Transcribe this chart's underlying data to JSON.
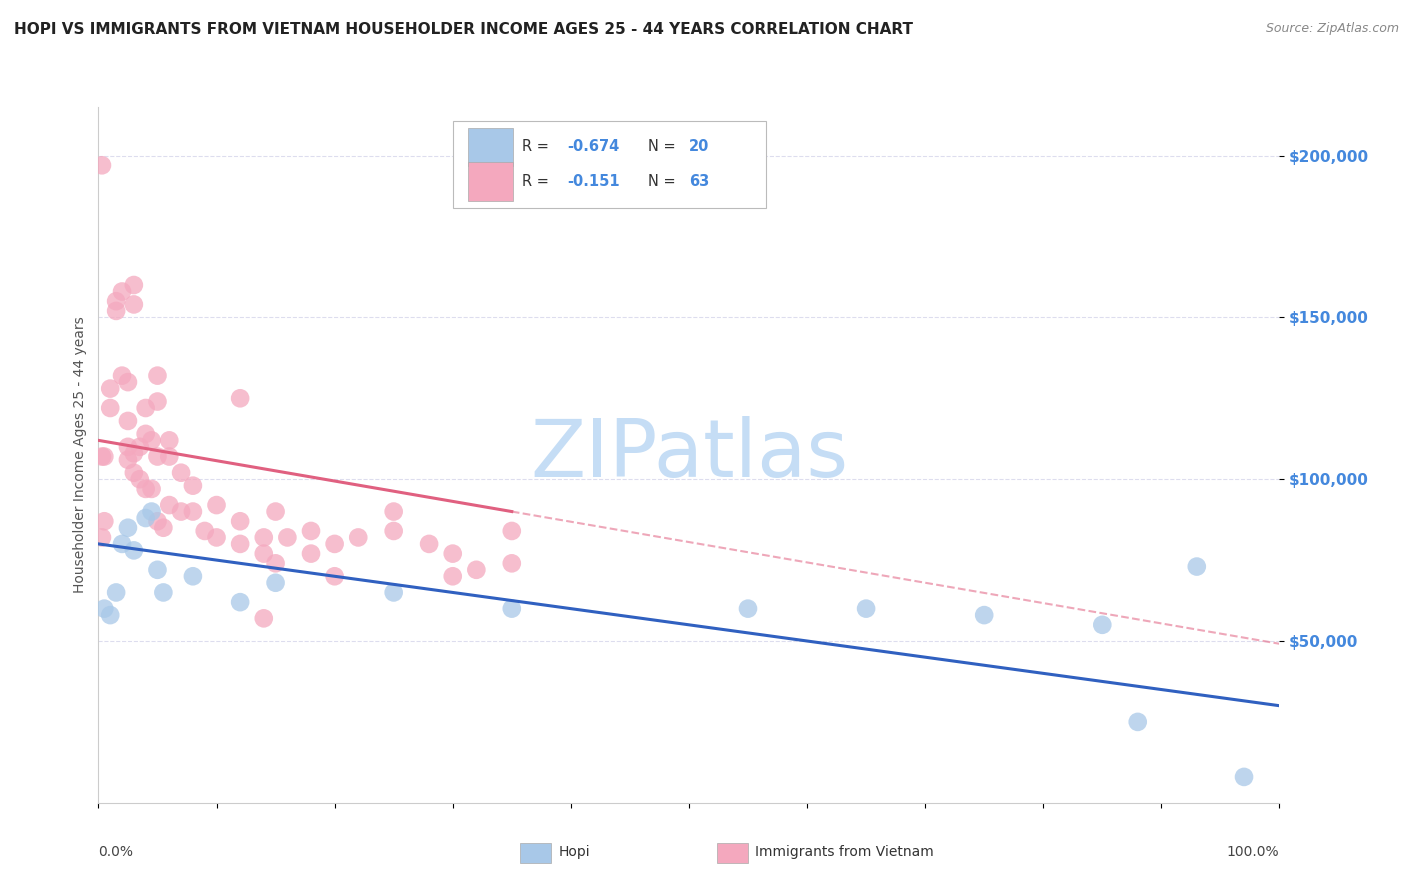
{
  "title": "HOPI VS IMMIGRANTS FROM VIETNAM HOUSEHOLDER INCOME AGES 25 - 44 YEARS CORRELATION CHART",
  "source": "Source: ZipAtlas.com",
  "ylabel": "Householder Income Ages 25 - 44 years",
  "yticks": [
    50000,
    100000,
    150000,
    200000
  ],
  "ytick_labels": [
    "$50,000",
    "$100,000",
    "$150,000",
    "$200,000"
  ],
  "ylim": [
    0,
    215000
  ],
  "xlim": [
    0.0,
    1.0
  ],
  "hopi_color": "#a8c8e8",
  "vietnam_color": "#f4a8be",
  "hopi_line_color": "#3060c0",
  "vietnam_line_color": "#e06080",
  "hopi_scatter": [
    [
      0.005,
      60000
    ],
    [
      0.01,
      58000
    ],
    [
      0.015,
      65000
    ],
    [
      0.02,
      80000
    ],
    [
      0.025,
      85000
    ],
    [
      0.03,
      78000
    ],
    [
      0.04,
      88000
    ],
    [
      0.045,
      90000
    ],
    [
      0.05,
      72000
    ],
    [
      0.055,
      65000
    ],
    [
      0.08,
      70000
    ],
    [
      0.12,
      62000
    ],
    [
      0.15,
      68000
    ],
    [
      0.25,
      65000
    ],
    [
      0.35,
      60000
    ],
    [
      0.55,
      60000
    ],
    [
      0.65,
      60000
    ],
    [
      0.75,
      58000
    ],
    [
      0.85,
      55000
    ],
    [
      0.88,
      25000
    ],
    [
      0.93,
      73000
    ],
    [
      0.97,
      8000
    ]
  ],
  "vietnam_scatter": [
    [
      0.01,
      122000
    ],
    [
      0.01,
      128000
    ],
    [
      0.015,
      152000
    ],
    [
      0.015,
      155000
    ],
    [
      0.02,
      158000
    ],
    [
      0.02,
      132000
    ],
    [
      0.025,
      130000
    ],
    [
      0.025,
      118000
    ],
    [
      0.025,
      110000
    ],
    [
      0.025,
      106000
    ],
    [
      0.03,
      160000
    ],
    [
      0.03,
      154000
    ],
    [
      0.03,
      108000
    ],
    [
      0.03,
      102000
    ],
    [
      0.035,
      110000
    ],
    [
      0.035,
      100000
    ],
    [
      0.04,
      122000
    ],
    [
      0.04,
      114000
    ],
    [
      0.04,
      97000
    ],
    [
      0.045,
      112000
    ],
    [
      0.045,
      97000
    ],
    [
      0.05,
      132000
    ],
    [
      0.05,
      124000
    ],
    [
      0.05,
      107000
    ],
    [
      0.05,
      87000
    ],
    [
      0.055,
      85000
    ],
    [
      0.06,
      112000
    ],
    [
      0.06,
      107000
    ],
    [
      0.06,
      92000
    ],
    [
      0.07,
      102000
    ],
    [
      0.07,
      90000
    ],
    [
      0.08,
      98000
    ],
    [
      0.08,
      90000
    ],
    [
      0.09,
      84000
    ],
    [
      0.1,
      92000
    ],
    [
      0.1,
      82000
    ],
    [
      0.12,
      125000
    ],
    [
      0.12,
      87000
    ],
    [
      0.12,
      80000
    ],
    [
      0.14,
      82000
    ],
    [
      0.14,
      77000
    ],
    [
      0.15,
      90000
    ],
    [
      0.15,
      74000
    ],
    [
      0.16,
      82000
    ],
    [
      0.18,
      84000
    ],
    [
      0.18,
      77000
    ],
    [
      0.2,
      80000
    ],
    [
      0.2,
      70000
    ],
    [
      0.22,
      82000
    ],
    [
      0.25,
      90000
    ],
    [
      0.25,
      84000
    ],
    [
      0.28,
      80000
    ],
    [
      0.3,
      77000
    ],
    [
      0.3,
      70000
    ],
    [
      0.32,
      72000
    ],
    [
      0.35,
      84000
    ],
    [
      0.35,
      74000
    ],
    [
      0.14,
      57000
    ],
    [
      0.005,
      107000
    ],
    [
      0.005,
      87000
    ],
    [
      0.003,
      197000
    ],
    [
      0.003,
      107000
    ],
    [
      0.003,
      82000
    ]
  ],
  "background_color": "#ffffff",
  "grid_color": "#ddddee",
  "title_color": "#222222",
  "source_color": "#888888",
  "tick_color": "#4488dd",
  "ylabel_color": "#555555",
  "watermark_text": "ZIPatlas",
  "watermark_color": "#c5ddf5",
  "legend_box_color": "#aaaaaa",
  "legend_r_color": "#4488dd",
  "legend_n_color": "#4488dd"
}
